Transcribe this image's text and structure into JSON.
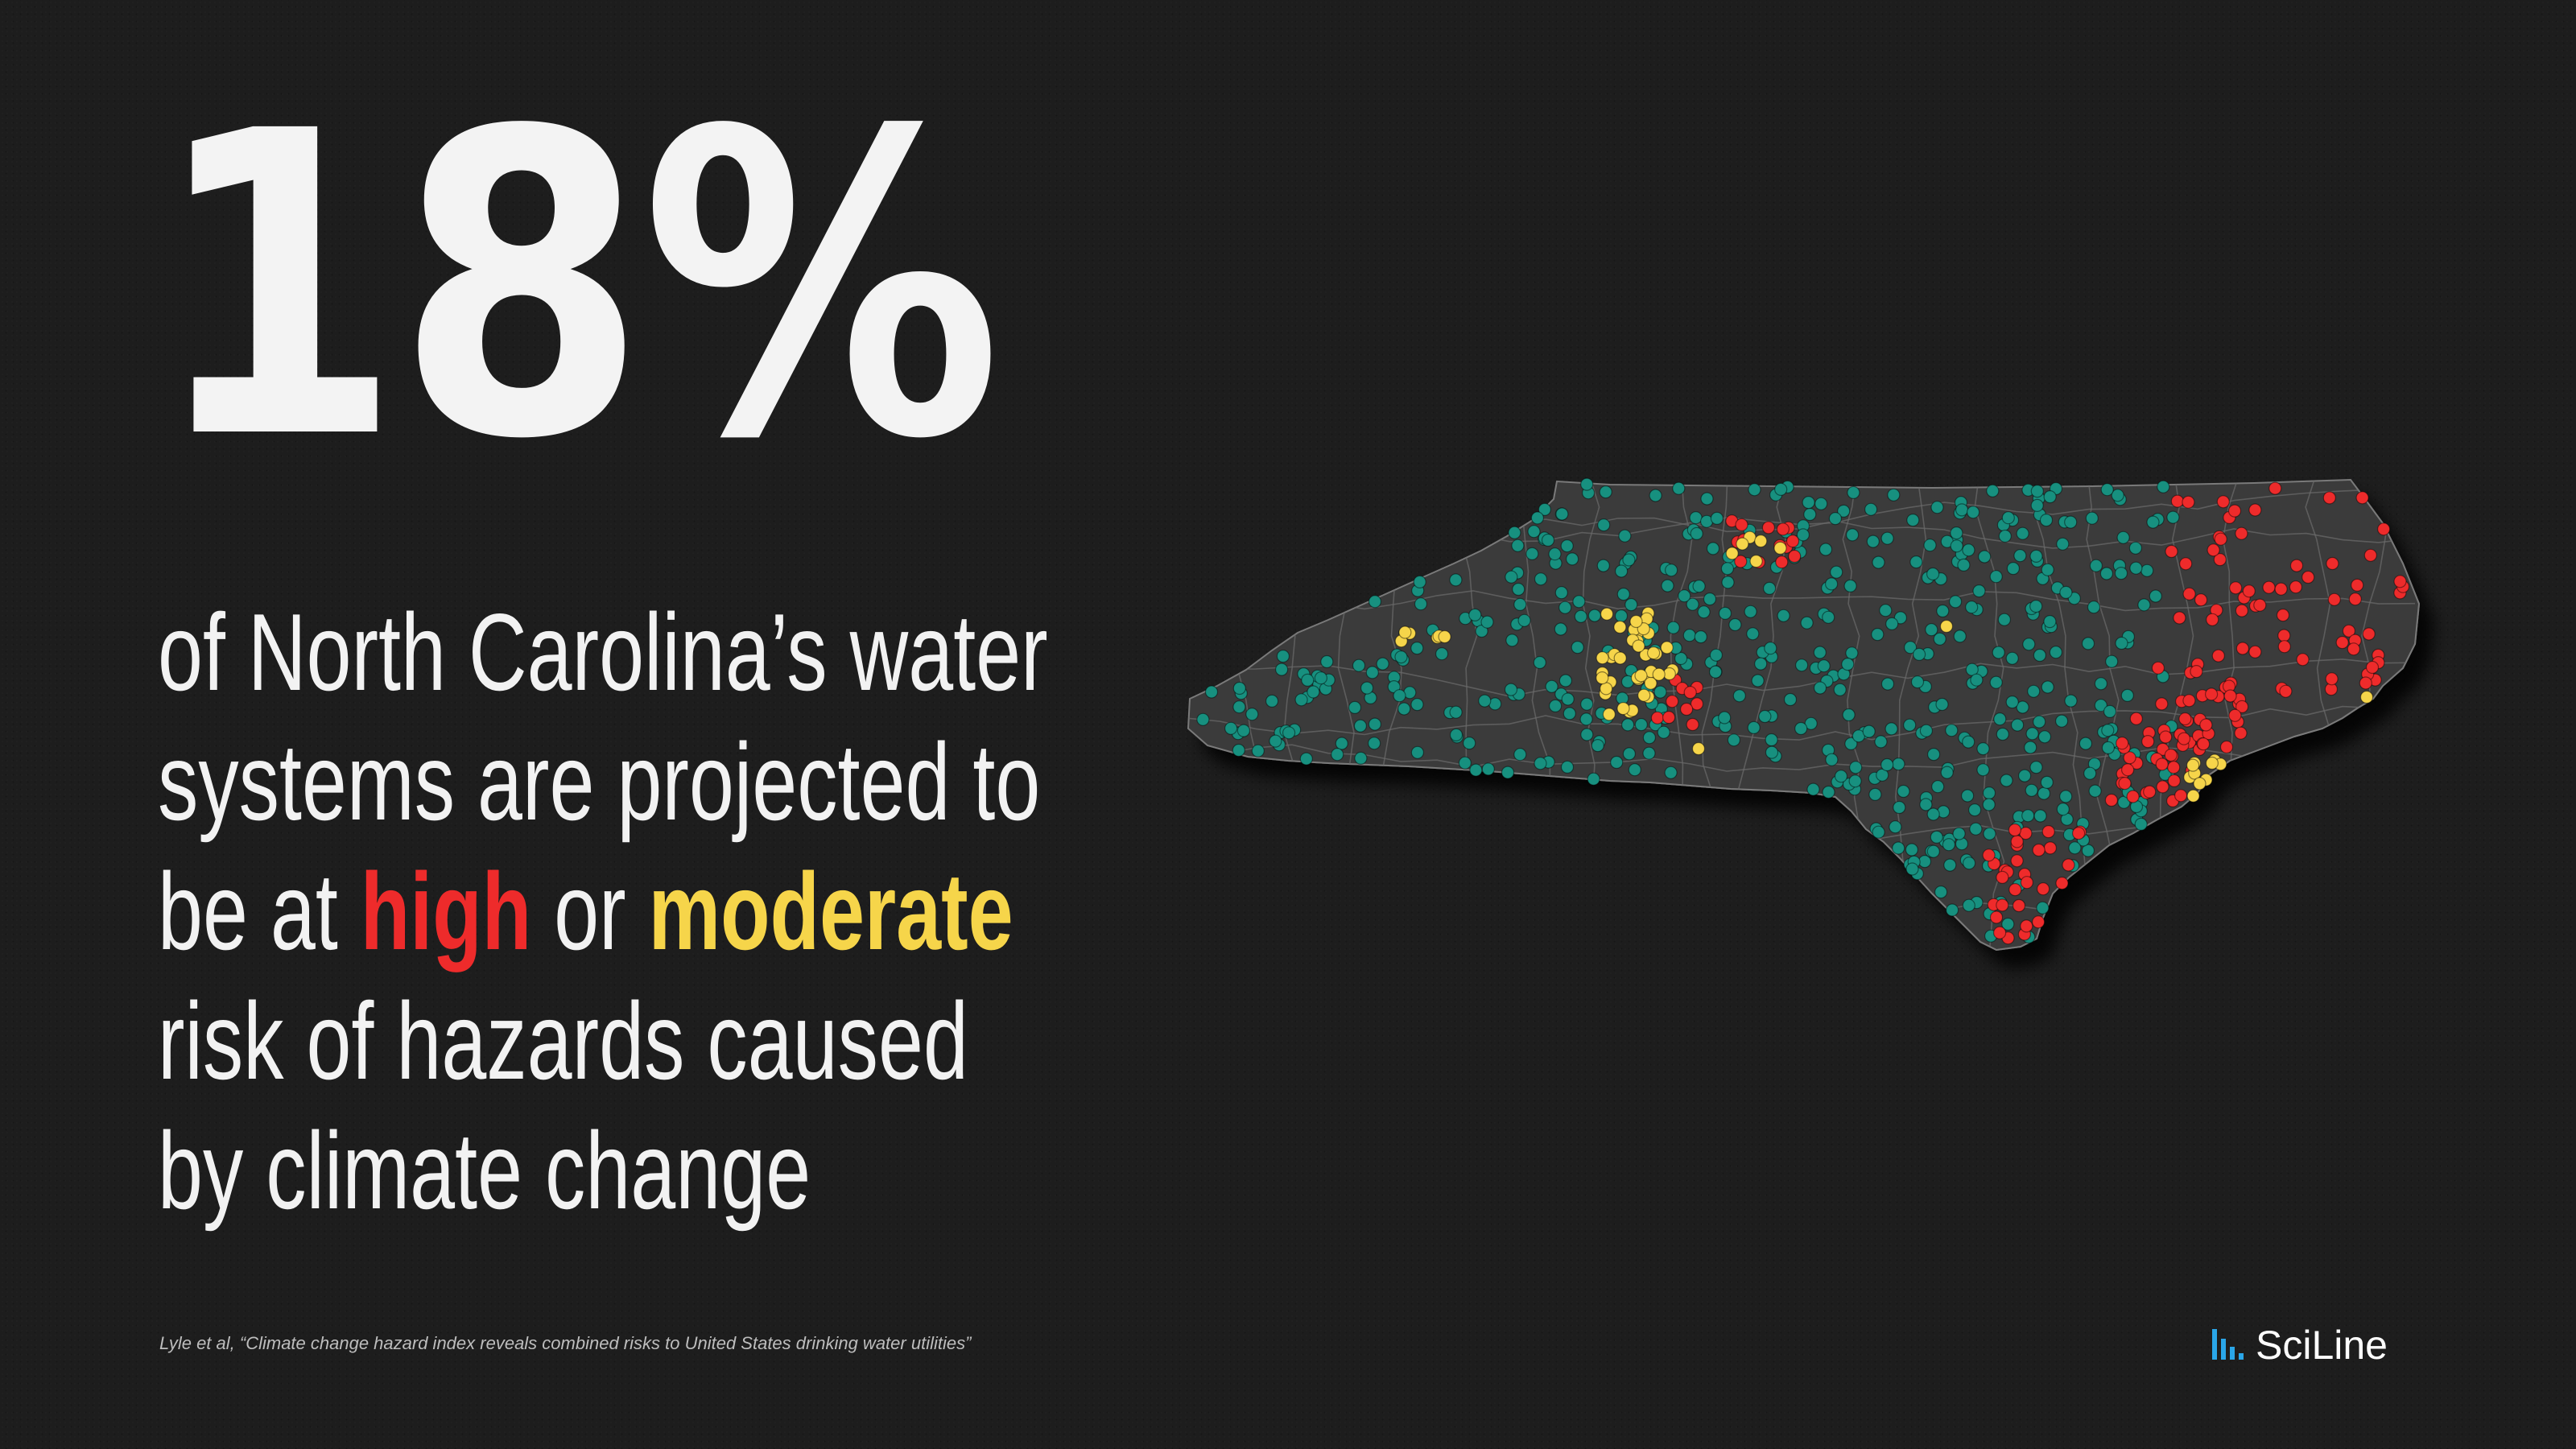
{
  "headline": {
    "stat": "18%",
    "line1": "of North Carolina’s water",
    "line2": "systems are projected to",
    "line3_prefix": "be at ",
    "high_word": "high",
    "line3_mid": " or ",
    "moderate_word": "moderate",
    "line4": "risk of hazards caused",
    "line5": "by climate change"
  },
  "citation": "Lyle et al, “Climate change hazard index reveals combined risks to United States drinking water utilities”",
  "logo": {
    "text": "SciLine",
    "icon": "sciline-bars-icon"
  },
  "colors": {
    "background": "#1d1d1d",
    "map_fill": "#3b3b3b",
    "county_lines": "#6a6a6a",
    "high": "#ee2b2b",
    "moderate": "#f6d54a",
    "low": "#17907f",
    "logo_accent": "#2aa6e8"
  },
  "map": {
    "region": "North Carolina",
    "marker_categories": [
      "high",
      "moderate",
      "low"
    ]
  }
}
